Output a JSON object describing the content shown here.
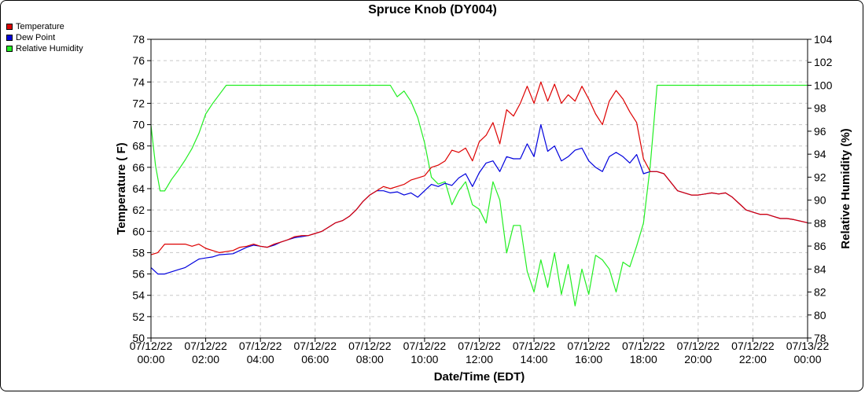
{
  "chart_data": {
    "type": "line",
    "title": "Spruce Knob (DY004)",
    "xlabel": "Date/Time (EDT)",
    "ylabel": "Temperature ( F)",
    "y2label": "Relative Humidity (%)",
    "x_ticks": [
      {
        "date": "07/12/22",
        "time": "00:00"
      },
      {
        "date": "07/12/22",
        "time": "02:00"
      },
      {
        "date": "07/12/22",
        "time": "04:00"
      },
      {
        "date": "07/12/22",
        "time": "06:00"
      },
      {
        "date": "07/12/22",
        "time": "08:00"
      },
      {
        "date": "07/12/22",
        "time": "10:00"
      },
      {
        "date": "07/12/22",
        "time": "12:00"
      },
      {
        "date": "07/12/22",
        "time": "14:00"
      },
      {
        "date": "07/12/22",
        "time": "16:00"
      },
      {
        "date": "07/12/22",
        "time": "18:00"
      },
      {
        "date": "07/12/22",
        "time": "20:00"
      },
      {
        "date": "07/12/22",
        "time": "22:00"
      },
      {
        "date": "07/13/22",
        "time": "00:00"
      }
    ],
    "xlim": [
      "07/12/22 00:00",
      "07/13/22 00:00"
    ],
    "ylim": [
      50,
      78
    ],
    "y_ticks": [
      50,
      52,
      54,
      56,
      58,
      60,
      62,
      64,
      66,
      68,
      70,
      72,
      74,
      76,
      78
    ],
    "y2lim": [
      78,
      104
    ],
    "y2_ticks": [
      78,
      80,
      82,
      84,
      86,
      88,
      90,
      92,
      94,
      96,
      98,
      100,
      102,
      104
    ],
    "grid": true,
    "legend_position": "top-left",
    "series": [
      {
        "name": "Temperature",
        "color": "#dd0000",
        "axis": "left",
        "points": [
          [
            "00:00",
            57.8
          ],
          [
            "00:15",
            58.0
          ],
          [
            "00:30",
            58.8
          ],
          [
            "01:00",
            58.8
          ],
          [
            "01:15",
            58.8
          ],
          [
            "01:30",
            58.6
          ],
          [
            "01:45",
            58.8
          ],
          [
            "02:00",
            58.4
          ],
          [
            "02:15",
            58.2
          ],
          [
            "02:30",
            58.0
          ],
          [
            "03:00",
            58.2
          ],
          [
            "03:15",
            58.5
          ],
          [
            "03:30",
            58.6
          ],
          [
            "03:45",
            58.8
          ],
          [
            "04:00",
            58.6
          ],
          [
            "04:15",
            58.5
          ],
          [
            "04:30",
            58.8
          ],
          [
            "04:45",
            59.0
          ],
          [
            "05:00",
            59.2
          ],
          [
            "05:15",
            59.5
          ],
          [
            "05:30",
            59.6
          ],
          [
            "05:45",
            59.6
          ],
          [
            "06:00",
            59.8
          ],
          [
            "06:15",
            60.0
          ],
          [
            "06:30",
            60.4
          ],
          [
            "06:45",
            60.8
          ],
          [
            "07:00",
            61.0
          ],
          [
            "07:15",
            61.4
          ],
          [
            "07:30",
            62.0
          ],
          [
            "07:45",
            62.8
          ],
          [
            "08:00",
            63.4
          ],
          [
            "08:15",
            63.8
          ],
          [
            "08:30",
            64.2
          ],
          [
            "08:45",
            64.0
          ],
          [
            "09:00",
            64.2
          ],
          [
            "09:15",
            64.4
          ],
          [
            "09:30",
            64.8
          ],
          [
            "09:45",
            65.0
          ],
          [
            "10:00",
            65.2
          ],
          [
            "10:15",
            66.0
          ],
          [
            "10:30",
            66.2
          ],
          [
            "10:45",
            66.6
          ],
          [
            "11:00",
            67.6
          ],
          [
            "11:15",
            67.4
          ],
          [
            "11:30",
            67.8
          ],
          [
            "11:45",
            66.6
          ],
          [
            "12:00",
            68.4
          ],
          [
            "12:15",
            69.0
          ],
          [
            "12:30",
            70.2
          ],
          [
            "12:45",
            68.2
          ],
          [
            "13:00",
            71.4
          ],
          [
            "13:15",
            70.8
          ],
          [
            "13:30",
            72.0
          ],
          [
            "13:45",
            73.6
          ],
          [
            "14:00",
            72.0
          ],
          [
            "14:15",
            74.0
          ],
          [
            "14:30",
            72.2
          ],
          [
            "14:45",
            73.8
          ],
          [
            "15:00",
            72.0
          ],
          [
            "15:15",
            72.8
          ],
          [
            "15:30",
            72.2
          ],
          [
            "15:45",
            73.6
          ],
          [
            "16:00",
            72.4
          ],
          [
            "16:15",
            71.0
          ],
          [
            "16:30",
            70.0
          ],
          [
            "16:45",
            72.2
          ],
          [
            "17:00",
            73.2
          ],
          [
            "17:15",
            72.4
          ],
          [
            "17:30",
            71.2
          ],
          [
            "17:45",
            70.2
          ],
          [
            "18:00",
            66.8
          ],
          [
            "18:15",
            65.6
          ],
          [
            "18:30",
            65.6
          ],
          [
            "18:45",
            65.4
          ],
          [
            "19:00",
            64.6
          ],
          [
            "19:15",
            63.8
          ],
          [
            "19:30",
            63.6
          ],
          [
            "19:45",
            63.4
          ],
          [
            "20:00",
            63.4
          ],
          [
            "20:15",
            63.5
          ],
          [
            "20:30",
            63.6
          ],
          [
            "20:45",
            63.5
          ],
          [
            "21:00",
            63.6
          ],
          [
            "21:15",
            63.2
          ],
          [
            "21:30",
            62.6
          ],
          [
            "21:45",
            62.0
          ],
          [
            "22:00",
            61.8
          ],
          [
            "22:15",
            61.6
          ],
          [
            "22:30",
            61.6
          ],
          [
            "22:45",
            61.4
          ],
          [
            "23:00",
            61.2
          ],
          [
            "23:15",
            61.2
          ],
          [
            "23:30",
            61.1
          ],
          [
            "24:00",
            60.8
          ]
        ]
      },
      {
        "name": "Dew Point",
        "color": "#0000dd",
        "axis": "left",
        "points": [
          [
            "00:00",
            56.6
          ],
          [
            "00:15",
            56.0
          ],
          [
            "00:30",
            56.0
          ],
          [
            "01:00",
            56.4
          ],
          [
            "01:15",
            56.6
          ],
          [
            "01:30",
            57.0
          ],
          [
            "01:45",
            57.4
          ],
          [
            "02:00",
            57.5
          ],
          [
            "02:15",
            57.6
          ],
          [
            "02:30",
            57.8
          ],
          [
            "03:00",
            57.9
          ],
          [
            "03:15",
            58.2
          ],
          [
            "03:30",
            58.5
          ],
          [
            "03:45",
            58.7
          ],
          [
            "04:00",
            58.6
          ],
          [
            "04:15",
            58.5
          ],
          [
            "04:30",
            58.7
          ],
          [
            "04:45",
            59.0
          ],
          [
            "05:00",
            59.2
          ],
          [
            "05:15",
            59.4
          ],
          [
            "05:30",
            59.5
          ],
          [
            "05:45",
            59.6
          ],
          [
            "06:00",
            59.8
          ],
          [
            "06:15",
            60.0
          ],
          [
            "06:30",
            60.4
          ],
          [
            "06:45",
            60.8
          ],
          [
            "07:00",
            61.0
          ],
          [
            "07:15",
            61.4
          ],
          [
            "07:30",
            62.0
          ],
          [
            "07:45",
            62.8
          ],
          [
            "08:00",
            63.4
          ],
          [
            "08:15",
            63.8
          ],
          [
            "08:30",
            63.8
          ],
          [
            "08:45",
            63.6
          ],
          [
            "09:00",
            63.7
          ],
          [
            "09:15",
            63.4
          ],
          [
            "09:30",
            63.6
          ],
          [
            "09:45",
            63.2
          ],
          [
            "10:00",
            63.8
          ],
          [
            "10:15",
            64.4
          ],
          [
            "10:30",
            64.2
          ],
          [
            "10:45",
            64.5
          ],
          [
            "11:00",
            64.3
          ],
          [
            "11:15",
            65.0
          ],
          [
            "11:30",
            65.4
          ],
          [
            "11:45",
            64.2
          ],
          [
            "12:00",
            65.5
          ],
          [
            "12:15",
            66.4
          ],
          [
            "12:30",
            66.6
          ],
          [
            "12:45",
            65.6
          ],
          [
            "13:00",
            67.0
          ],
          [
            "13:15",
            66.8
          ],
          [
            "13:30",
            66.8
          ],
          [
            "13:45",
            68.2
          ],
          [
            "14:00",
            67.0
          ],
          [
            "14:15",
            70.0
          ],
          [
            "14:30",
            67.5
          ],
          [
            "14:45",
            68.0
          ],
          [
            "15:00",
            66.6
          ],
          [
            "15:15",
            67.0
          ],
          [
            "15:30",
            67.6
          ],
          [
            "15:45",
            67.8
          ],
          [
            "16:00",
            66.6
          ],
          [
            "16:15",
            66.0
          ],
          [
            "16:30",
            65.6
          ],
          [
            "16:45",
            67.0
          ],
          [
            "17:00",
            67.4
          ],
          [
            "17:15",
            67.0
          ],
          [
            "17:30",
            66.4
          ],
          [
            "17:45",
            67.2
          ],
          [
            "18:00",
            65.4
          ],
          [
            "18:15",
            65.6
          ],
          [
            "18:30",
            65.6
          ],
          [
            "18:45",
            65.4
          ],
          [
            "19:00",
            64.6
          ],
          [
            "19:15",
            63.8
          ],
          [
            "19:30",
            63.6
          ],
          [
            "19:45",
            63.4
          ],
          [
            "20:00",
            63.4
          ],
          [
            "20:15",
            63.5
          ],
          [
            "20:30",
            63.6
          ],
          [
            "20:45",
            63.5
          ],
          [
            "21:00",
            63.6
          ],
          [
            "21:15",
            63.2
          ],
          [
            "21:30",
            62.6
          ],
          [
            "21:45",
            62.0
          ],
          [
            "22:00",
            61.8
          ],
          [
            "22:15",
            61.6
          ],
          [
            "22:30",
            61.6
          ],
          [
            "22:45",
            61.4
          ],
          [
            "23:00",
            61.2
          ],
          [
            "23:15",
            61.2
          ],
          [
            "23:30",
            61.1
          ],
          [
            "24:00",
            60.8
          ]
        ]
      },
      {
        "name": "Relative Humidity",
        "color": "#22ee22",
        "axis": "right",
        "points": [
          [
            "00:00",
            96.5
          ],
          [
            "00:10",
            93.0
          ],
          [
            "00:20",
            90.8
          ],
          [
            "00:30",
            90.8
          ],
          [
            "00:45",
            91.8
          ],
          [
            "01:00",
            92.6
          ],
          [
            "01:15",
            93.5
          ],
          [
            "01:30",
            94.5
          ],
          [
            "01:45",
            95.8
          ],
          [
            "02:00",
            97.5
          ],
          [
            "02:15",
            98.4
          ],
          [
            "02:30",
            99.2
          ],
          [
            "02:45",
            100
          ],
          [
            "03:00",
            100
          ],
          [
            "04:00",
            100
          ],
          [
            "05:00",
            100
          ],
          [
            "06:00",
            100
          ],
          [
            "07:00",
            100
          ],
          [
            "08:00",
            100
          ],
          [
            "08:45",
            100
          ],
          [
            "09:00",
            99.0
          ],
          [
            "09:15",
            99.5
          ],
          [
            "09:30",
            98.6
          ],
          [
            "09:45",
            97.2
          ],
          [
            "10:00",
            95.0
          ],
          [
            "10:15",
            92.0
          ],
          [
            "10:30",
            91.4
          ],
          [
            "10:45",
            91.6
          ],
          [
            "11:00",
            89.6
          ],
          [
            "11:15",
            90.8
          ],
          [
            "11:30",
            91.6
          ],
          [
            "11:45",
            89.6
          ],
          [
            "12:00",
            89.2
          ],
          [
            "12:15",
            88.0
          ],
          [
            "12:30",
            91.6
          ],
          [
            "12:45",
            90.0
          ],
          [
            "13:00",
            85.4
          ],
          [
            "13:15",
            87.8
          ],
          [
            "13:30",
            87.8
          ],
          [
            "13:45",
            83.8
          ],
          [
            "14:00",
            82.0
          ],
          [
            "14:15",
            84.8
          ],
          [
            "14:30",
            82.4
          ],
          [
            "14:45",
            85.4
          ],
          [
            "15:00",
            81.8
          ],
          [
            "15:15",
            84.4
          ],
          [
            "15:30",
            80.8
          ],
          [
            "15:45",
            84.0
          ],
          [
            "16:00",
            81.8
          ],
          [
            "16:15",
            85.2
          ],
          [
            "16:30",
            84.8
          ],
          [
            "16:45",
            84.0
          ],
          [
            "17:00",
            82.0
          ],
          [
            "17:15",
            84.6
          ],
          [
            "17:30",
            84.2
          ],
          [
            "17:45",
            86.0
          ],
          [
            "18:00",
            88.0
          ],
          [
            "18:15",
            93.0
          ],
          [
            "18:30",
            100
          ],
          [
            "19:00",
            100
          ],
          [
            "20:00",
            100
          ],
          [
            "21:00",
            100
          ],
          [
            "22:00",
            100
          ],
          [
            "23:00",
            100
          ],
          [
            "24:00",
            100
          ]
        ]
      }
    ]
  }
}
